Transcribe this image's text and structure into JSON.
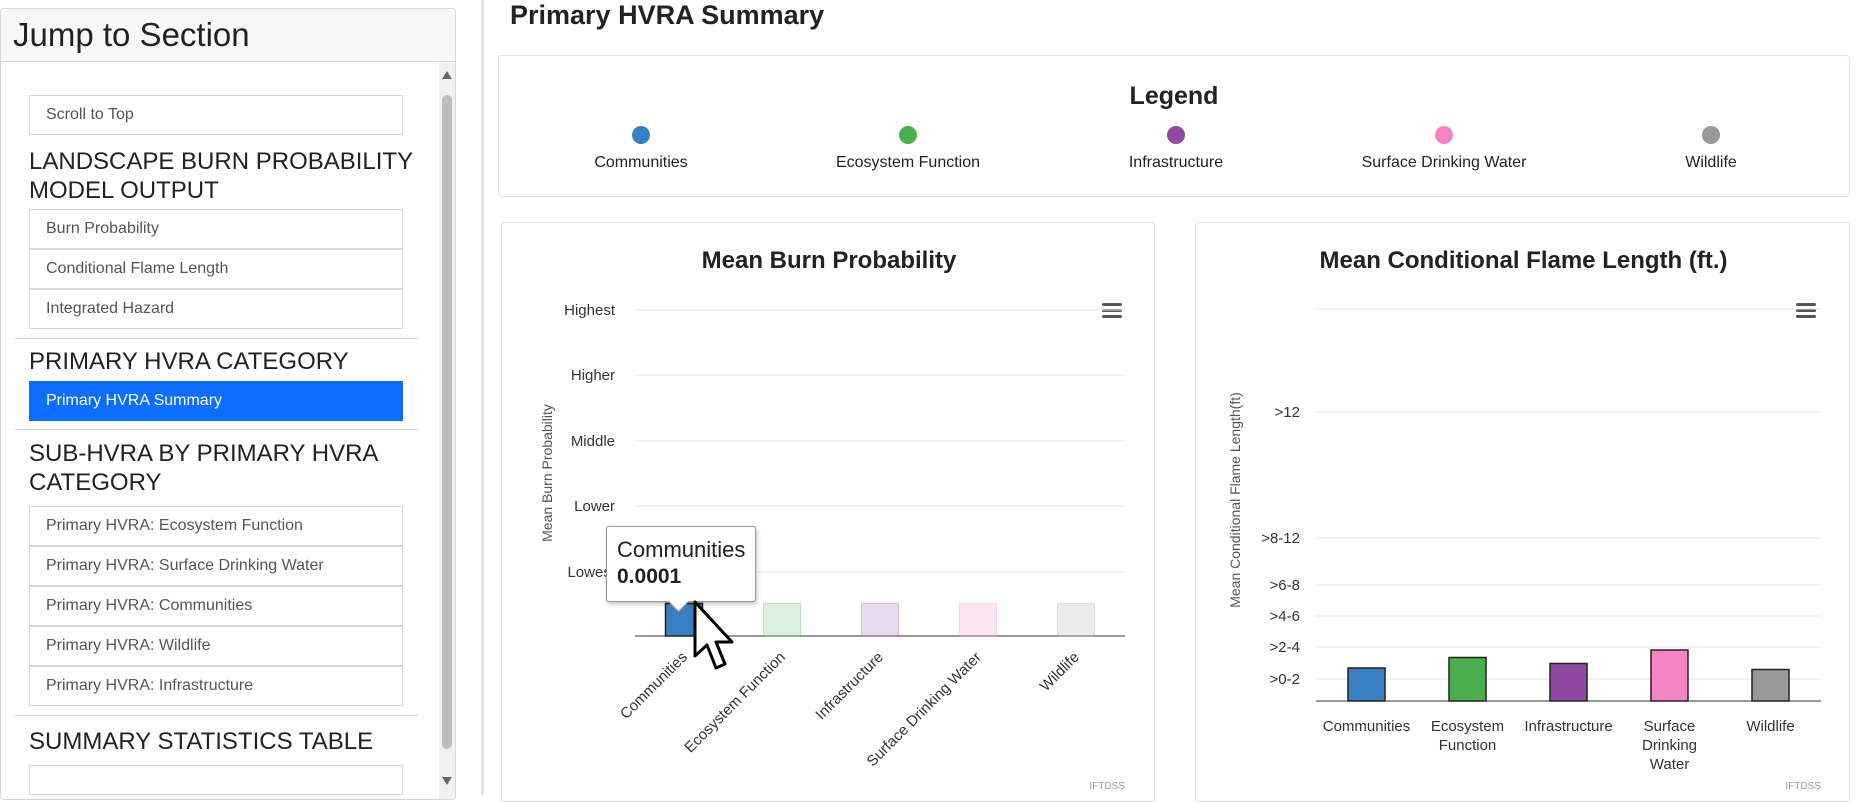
{
  "sidebar": {
    "title": "Jump to Section",
    "scroll_top": "Scroll to Top",
    "sections": [
      {
        "heading": "LANDSCAPE BURN PROBABILITY MODEL OUTPUT",
        "items": [
          "Burn Probability",
          "Conditional Flame Length",
          "Integrated Hazard"
        ]
      },
      {
        "heading": "PRIMARY HVRA CATEGORY",
        "items": [
          "Primary HVRA Summary"
        ]
      },
      {
        "heading": "SUB-HVRA BY PRIMARY HVRA CATEGORY",
        "items": [
          "Primary HVRA: Ecosystem Function",
          "Primary HVRA: Surface Drinking Water",
          "Primary HVRA: Communities",
          "Primary HVRA: Wildlife",
          "Primary HVRA: Infrastructure"
        ]
      },
      {
        "heading": "SUMMARY STATISTICS TABLE",
        "items": []
      }
    ],
    "active_item": "Primary HVRA Summary"
  },
  "page_title": "Primary HVRA Summary",
  "legend": {
    "title": "Legend",
    "items": [
      {
        "label": "Communities",
        "color": "#3a7fc1"
      },
      {
        "label": "Ecosystem Function",
        "color": "#4cae4c"
      },
      {
        "label": "Infrastructure",
        "color": "#8e4aa2"
      },
      {
        "label": "Surface Drinking Water",
        "color": "#f483c4"
      },
      {
        "label": "Wildlife",
        "color": "#999999"
      }
    ]
  },
  "chart_data": [
    {
      "type": "bar",
      "title": "Mean Burn Probability",
      "ylabel": "Mean Burn Probability",
      "xlabel": "",
      "y_categories": [
        "Lowest",
        "Lower",
        "Middle",
        "Higher",
        "Highest"
      ],
      "categories": [
        "Communities",
        "Ecosystem Function",
        "Infrastructure",
        "Surface Drinking Water",
        "Wildlife"
      ],
      "values": [
        0.0001,
        0.0001,
        0.0001,
        0.0001,
        0.0001
      ],
      "colors": [
        "#3a7fc1",
        "#4cae4c",
        "#8e4aa2",
        "#f483c4",
        "#999999"
      ],
      "highlighted": "Communities",
      "credit": "IFTDSS",
      "tooltip": {
        "name": "Communities",
        "value": "0.0001"
      }
    },
    {
      "type": "bar",
      "title": "Mean Conditional Flame Length (ft.)",
      "ylabel": "Mean Conditional Flame Length(ft)",
      "xlabel": "",
      "y_categories": [
        ">0-2",
        ">2-4",
        ">4-6",
        ">6-8",
        ">8-12",
        ">12"
      ],
      "categories": [
        "Communities",
        "Ecosystem Function",
        "Infrastructure",
        "Surface Drinking Water",
        "Wildlife"
      ],
      "category_lines": [
        [
          "Communities"
        ],
        [
          "Ecosystem",
          "Function"
        ],
        [
          "Infrastructure"
        ],
        [
          "Surface",
          "Drinking",
          "Water"
        ],
        [
          "Wildlife"
        ]
      ],
      "values": [
        1.1,
        1.45,
        1.25,
        1.7,
        1.05
      ],
      "colors": [
        "#3a7fc1",
        "#4cae4c",
        "#8e4aa2",
        "#f483c4",
        "#999999"
      ],
      "credit": "IFTDSS"
    }
  ]
}
